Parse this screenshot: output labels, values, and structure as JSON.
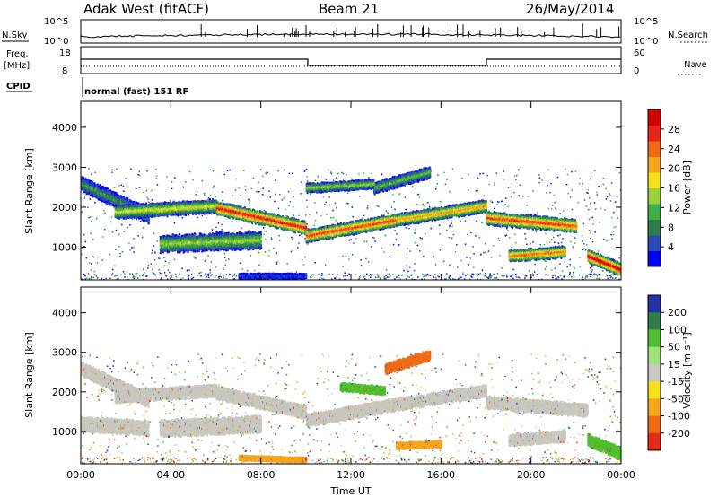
{
  "header": {
    "radar": "Adak West (fitACF)",
    "beam": "Beam 21",
    "date": "26/May/2014"
  },
  "top_panels": {
    "nsky_label": "N.Sky",
    "nsearch_label": "N.Search",
    "noise_ticks_left": [
      "10^5",
      "10^0"
    ],
    "noise_ticks_right": [
      "10^5",
      "10^0"
    ],
    "freq_label": "Freq.",
    "freq_unit": "[MHz]",
    "freq_ticks": [
      "18",
      "8"
    ],
    "nave_label": "Nave",
    "nave_ticks": [
      "60",
      "0"
    ],
    "cpid_label": "CPID",
    "cpid_text": "normal (fast) 151 RF"
  },
  "chart_data": [
    {
      "type": "heatmap",
      "name": "power-panel",
      "ylabel": "Slant Range [km]",
      "xlabel": "",
      "xlim_hours": [
        0,
        24
      ],
      "x_ticks": [
        "00:00",
        "04:00",
        "08:00",
        "12:00",
        "16:00",
        "20:00",
        "00:00"
      ],
      "ylim": [
        180,
        4650
      ],
      "y_ticks": [
        1000,
        2000,
        3000,
        4000
      ],
      "colorbar": {
        "label": "Power [dB]",
        "ticks": [
          4,
          8,
          12,
          16,
          20,
          24,
          28
        ],
        "range": [
          0,
          32
        ],
        "colors": [
          "#0000ff",
          "#2a48b8",
          "#2e7d4a",
          "#3fb049",
          "#9ad03a",
          "#f4e11c",
          "#f7a51a",
          "#f26a16",
          "#e8251a",
          "#d40000"
        ]
      },
      "bands": [
        {
          "hours": [
            0.0,
            3.0
          ],
          "km_start": 2600,
          "km_end": 1800,
          "width_km": 260,
          "value_db": 8
        },
        {
          "hours": [
            1.5,
            6.0
          ],
          "km_start": 1900,
          "km_end": 2050,
          "width_km": 230,
          "value_db": 14
        },
        {
          "hours": [
            6.0,
            10.0
          ],
          "km_start": 2000,
          "km_end": 1500,
          "width_km": 230,
          "value_db": 24
        },
        {
          "hours": [
            10.0,
            14.0
          ],
          "km_start": 1300,
          "km_end": 1700,
          "width_km": 220,
          "value_db": 22
        },
        {
          "hours": [
            14.0,
            18.0
          ],
          "km_start": 1700,
          "km_end": 2050,
          "width_km": 210,
          "value_db": 18
        },
        {
          "hours": [
            18.0,
            22.0
          ],
          "km_start": 1750,
          "km_end": 1550,
          "width_km": 230,
          "value_db": 22
        },
        {
          "hours": [
            3.5,
            8.0
          ],
          "km_start": 1100,
          "km_end": 1200,
          "width_km": 300,
          "value_db": 12
        },
        {
          "hours": [
            19.0,
            21.5
          ],
          "km_start": 800,
          "km_end": 900,
          "width_km": 200,
          "value_db": 20
        },
        {
          "hours": [
            22.5,
            24.0
          ],
          "km_start": 800,
          "km_end": 450,
          "width_km": 220,
          "value_db": 26
        },
        {
          "hours": [
            13.0,
            15.5
          ],
          "km_start": 2500,
          "km_end": 2900,
          "width_km": 200,
          "value_db": 10
        },
        {
          "hours": [
            10.0,
            13.0
          ],
          "km_start": 2500,
          "km_end": 2600,
          "width_km": 160,
          "value_db": 12
        },
        {
          "hours": [
            7.0,
            10.0
          ],
          "km_start": 300,
          "km_end": 300,
          "width_km": 90,
          "value_db": 4
        }
      ]
    },
    {
      "type": "heatmap",
      "name": "velocity-panel",
      "ylabel": "Slant Range [km]",
      "xlabel": "Time UT",
      "xlim_hours": [
        0,
        24
      ],
      "x_ticks": [
        "00:00",
        "04:00",
        "08:00",
        "12:00",
        "16:00",
        "20:00",
        "00:00"
      ],
      "ylim": [
        180,
        4650
      ],
      "y_ticks": [
        1000,
        2000,
        3000,
        4000
      ],
      "colorbar": {
        "label": "Velocity [m s⁻¹]",
        "ticks": [
          200,
          100,
          50,
          15,
          -15,
          -50,
          -100,
          -200
        ],
        "colors": [
          "#2233aa",
          "#2e7d4a",
          "#4fc02e",
          "#9fe07a",
          "#c8c8c0",
          "#f4e11c",
          "#f7a51a",
          "#f26a16",
          "#e82a18"
        ]
      },
      "ground_scatter_color": "#c8c8c0",
      "bands": [
        {
          "hours": [
            0.0,
            3.0
          ],
          "km_start": 2600,
          "km_end": 1800,
          "width_km": 250,
          "value": "ground"
        },
        {
          "hours": [
            1.5,
            6.0
          ],
          "km_start": 1900,
          "km_end": 2050,
          "width_km": 220,
          "value": "ground"
        },
        {
          "hours": [
            6.0,
            10.0
          ],
          "km_start": 2000,
          "km_end": 1500,
          "width_km": 230,
          "value": "ground"
        },
        {
          "hours": [
            10.0,
            14.0
          ],
          "km_start": 1300,
          "km_end": 1700,
          "width_km": 220,
          "value": "ground"
        },
        {
          "hours": [
            14.0,
            18.0
          ],
          "km_start": 1700,
          "km_end": 2050,
          "width_km": 210,
          "value": "ground"
        },
        {
          "hours": [
            18.0,
            22.5
          ],
          "km_start": 1750,
          "km_end": 1550,
          "width_km": 230,
          "value": "ground"
        },
        {
          "hours": [
            3.5,
            8.0
          ],
          "km_start": 1100,
          "km_end": 1200,
          "width_km": 300,
          "value": "ground"
        },
        {
          "hours": [
            19.0,
            21.5
          ],
          "km_start": 800,
          "km_end": 900,
          "width_km": 200,
          "value": "ground"
        },
        {
          "hours": [
            0.0,
            3.0
          ],
          "km_start": 1200,
          "km_end": 1100,
          "width_km": 260,
          "value": "ground"
        },
        {
          "hours": [
            22.5,
            24.0
          ],
          "km_start": 800,
          "km_end": 450,
          "width_km": 220,
          "value": 60
        },
        {
          "hours": [
            13.5,
            15.5
          ],
          "km_start": 2600,
          "km_end": 2950,
          "width_km": 180,
          "value": -100
        },
        {
          "hours": [
            11.5,
            13.5
          ],
          "km_start": 2150,
          "km_end": 2050,
          "width_km": 150,
          "value": 60
        },
        {
          "hours": [
            14.0,
            16.0
          ],
          "km_start": 650,
          "km_end": 700,
          "width_km": 120,
          "value": -50
        },
        {
          "hours": [
            7.0,
            10.0
          ],
          "km_start": 350,
          "km_end": 300,
          "width_km": 90,
          "value": -50
        }
      ]
    }
  ]
}
